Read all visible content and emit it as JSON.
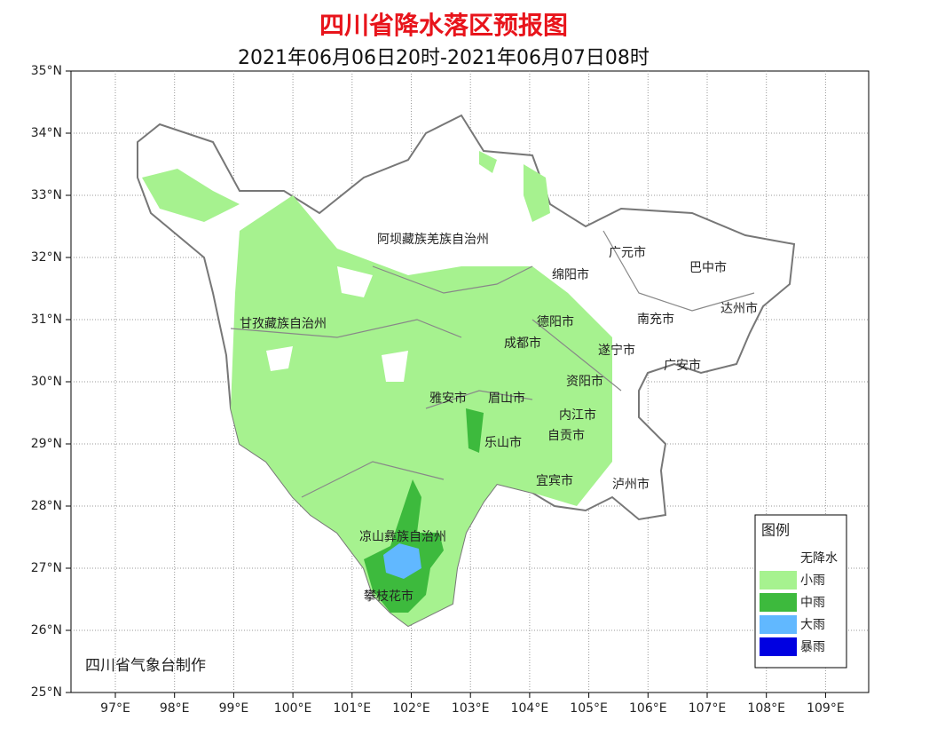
{
  "header": {
    "title": "四川省降水落区预报图",
    "subtitle": "2021年06月06日20时-2021年06月07日08时"
  },
  "map": {
    "lat_ticks": [
      "35°N",
      "34°N",
      "33°N",
      "32°N",
      "31°N",
      "30°N",
      "29°N",
      "28°N",
      "27°N",
      "26°N",
      "25°N"
    ],
    "lon_ticks": [
      "97°E",
      "98°E",
      "99°E",
      "100°E",
      "101°E",
      "102°E",
      "103°E",
      "104°E",
      "105°E",
      "106°E",
      "107°E",
      "108°E",
      "109°E"
    ],
    "places": [
      "阿坝藏族羌族自治州",
      "甘孜藏族自治州",
      "广元市",
      "绵阳市",
      "巴中市",
      "达州市",
      "德阳市",
      "南充市",
      "成都市",
      "遂宁市",
      "广安市",
      "雅安市",
      "眉山市",
      "资阳市",
      "内江市",
      "乐山市",
      "自贡市",
      "宜宾市",
      "泸州市",
      "凉山彝族自治州",
      "攀枝花市"
    ],
    "credit": "四川省气象台制作"
  },
  "legend": {
    "title": "图例",
    "items": [
      {
        "label": "无降水",
        "color": "#ffffff"
      },
      {
        "label": "小雨",
        "color": "#a6f28f"
      },
      {
        "label": "中雨",
        "color": "#3dba3d"
      },
      {
        "label": "大雨",
        "color": "#61b8ff"
      },
      {
        "label": "暴雨",
        "color": "#0000e1"
      }
    ]
  }
}
